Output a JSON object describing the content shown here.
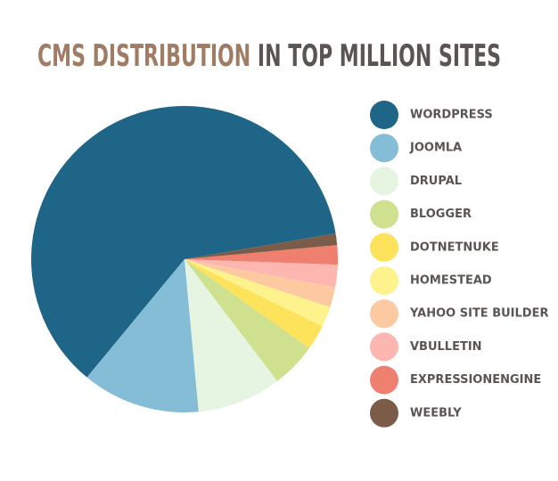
{
  "chart_data": {
    "type": "pie",
    "title": [
      "CMS DISTRIBUTION",
      "IN TOP MILLION SITES"
    ],
    "title_colors": [
      "#a07c64",
      "#5a5553"
    ],
    "categories": [
      "WORDPRESS",
      "JOOMLA",
      "DRUPAL",
      "BLOGGER",
      "DOTNETNUKE",
      "HOMESTEAD",
      "YAHOO SITE BUILDER",
      "VBULLETIN",
      "EXPRESSIONENGINE",
      "WEEBLY"
    ],
    "values": [
      60.1,
      12.2,
      8.7,
      4.7,
      2.6,
      2.1,
      2.1,
      2.3,
      2.0,
      1.2
    ],
    "colors": [
      "#1e6587",
      "#86bdd6",
      "#e6f4e2",
      "#cfe08f",
      "#fde35b",
      "#fdf28b",
      "#fdc9a0",
      "#fdb6b0",
      "#ef8070",
      "#7a5c48"
    ],
    "legend": "right"
  }
}
